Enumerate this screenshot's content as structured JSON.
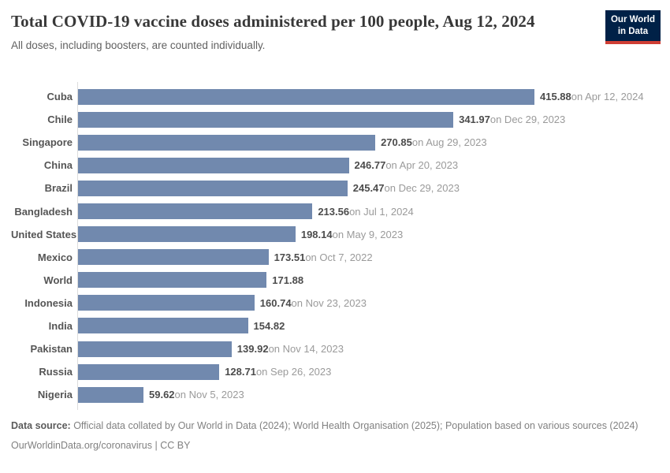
{
  "header": {
    "title": "Total COVID-19 vaccine doses administered per 100 people, Aug 12, 2024",
    "subtitle": "All doses, including boosters, are counted individually.",
    "logo": {
      "line1": "Our World",
      "line2": "in Data",
      "bg_color": "#002147",
      "accent_color": "#cf3e34"
    }
  },
  "chart_data": {
    "type": "bar",
    "orientation": "horizontal",
    "title": "Total COVID-19 vaccine doses administered per 100 people, Aug 12, 2024",
    "subtitle": "All doses, including boosters, are counted individually.",
    "categories": [
      "Cuba",
      "Chile",
      "Singapore",
      "China",
      "Brazil",
      "Bangladesh",
      "United States",
      "Mexico",
      "World",
      "Indonesia",
      "India",
      "Pakistan",
      "Russia",
      "Nigeria"
    ],
    "values": [
      415.88,
      341.97,
      270.85,
      246.77,
      245.47,
      213.56,
      198.14,
      173.51,
      171.88,
      160.74,
      154.82,
      139.92,
      128.71,
      59.62
    ],
    "date_labels": [
      "on Apr 12, 2024",
      "on Dec 29, 2023",
      "on Aug 29, 2023",
      "on Apr 20, 2023",
      "on Dec 29, 2023",
      "on Jul 1, 2024",
      "on May 9, 2023",
      "on Oct 7, 2022",
      "",
      "on Nov 23, 2023",
      "",
      "on Nov 14, 2023",
      "on Sep 26, 2023",
      "on Nov 5, 2023"
    ],
    "xlim": [
      0,
      415.88
    ],
    "bar_color": "#7189ae",
    "grid": false,
    "legend": "none",
    "value_label_position": "end-of-bar"
  },
  "footer": {
    "data_source_label": "Data source:",
    "data_source_text": " Official data collated by Our World in Data (2024); World Health Organisation (2025); Population based on various sources (2024)",
    "citation": "OurWorldinData.org/coronavirus | CC BY"
  }
}
